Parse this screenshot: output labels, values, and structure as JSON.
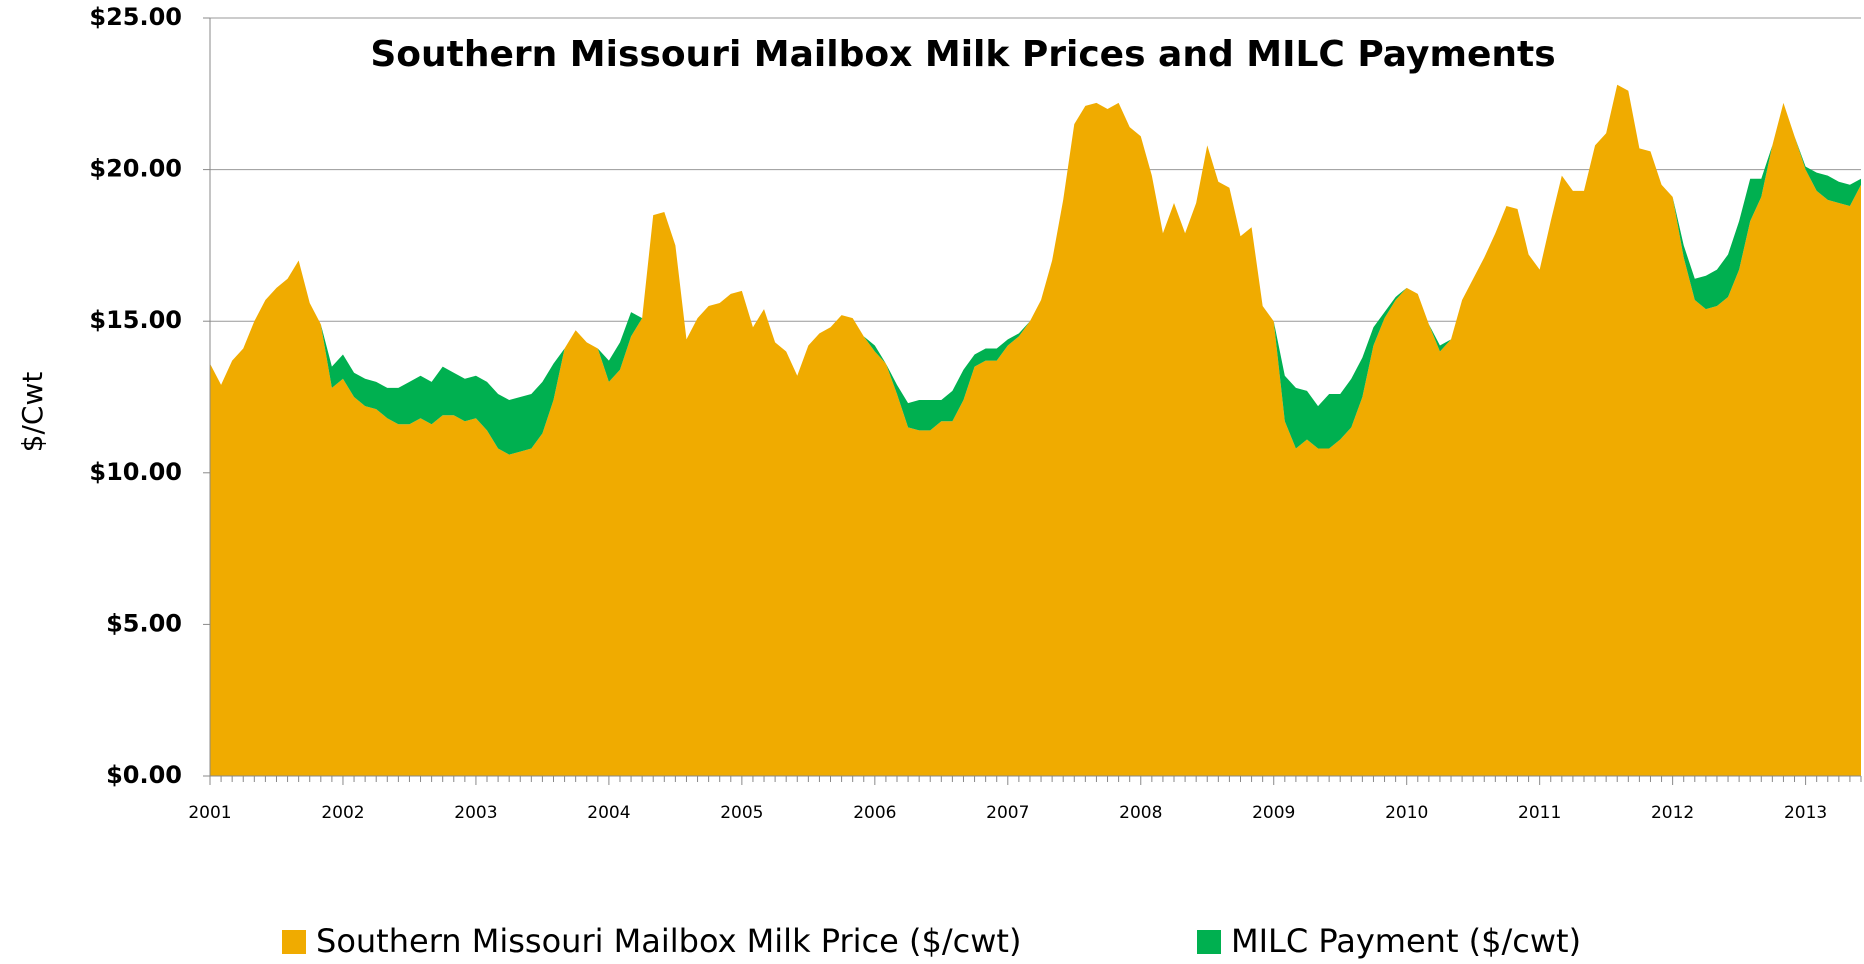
{
  "chart_data": {
    "type": "stacked_area",
    "title": "Southern Missouri Mailbox Milk Prices and MILC Payments",
    "y_label": "$/Cwt",
    "categories": [
      "2001",
      null,
      null,
      null,
      null,
      null,
      null,
      null,
      null,
      null,
      null,
      null,
      "2002",
      null,
      null,
      null,
      null,
      null,
      null,
      null,
      null,
      null,
      null,
      null,
      "2003",
      null,
      null,
      null,
      null,
      null,
      null,
      null,
      null,
      null,
      null,
      null,
      "2004",
      null,
      null,
      null,
      null,
      null,
      null,
      null,
      null,
      null,
      null,
      null,
      "2005",
      null,
      null,
      null,
      null,
      null,
      null,
      null,
      null,
      null,
      null,
      null,
      "2006",
      null,
      null,
      null,
      null,
      null,
      null,
      null,
      null,
      null,
      null,
      null,
      "2007",
      null,
      null,
      null,
      null,
      null,
      null,
      null,
      null,
      null,
      null,
      null,
      "2008",
      null,
      null,
      null,
      null,
      null,
      null,
      null,
      null,
      null,
      null,
      null,
      "2009",
      null,
      null,
      null,
      null,
      null,
      null,
      null,
      null,
      null,
      null,
      null,
      "2010",
      null,
      null,
      null,
      null,
      null,
      null,
      null,
      null,
      null,
      null,
      null,
      "2011",
      null,
      null,
      null,
      null,
      null,
      null,
      null,
      null,
      null,
      null,
      null,
      "2012",
      null,
      null,
      null,
      null,
      null,
      null,
      null,
      null,
      null,
      null,
      null,
      "2013",
      null,
      null,
      null,
      null,
      null
    ],
    "series": [
      {
        "name": "Southern Missouri Mailbox Milk Price ($/cwt)",
        "color": "#f0ab00",
        "values": [
          13.6,
          12.9,
          13.7,
          14.1,
          15.0,
          15.7,
          16.1,
          16.4,
          17.0,
          15.6,
          14.9,
          12.8,
          13.1,
          12.5,
          12.2,
          12.1,
          11.8,
          11.6,
          11.6,
          11.8,
          11.6,
          11.9,
          11.9,
          11.7,
          11.8,
          11.4,
          10.8,
          10.6,
          10.7,
          10.8,
          11.3,
          12.4,
          14.1,
          14.7,
          14.3,
          14.1,
          13.0,
          13.4,
          14.5,
          15.1,
          18.5,
          18.6,
          17.5,
          14.4,
          15.1,
          15.5,
          15.6,
          15.9,
          16.0,
          14.8,
          15.4,
          14.3,
          14.0,
          13.2,
          14.2,
          14.6,
          14.8,
          15.2,
          15.1,
          14.5,
          14.0,
          13.6,
          12.6,
          11.5,
          11.4,
          11.4,
          11.7,
          11.7,
          12.4,
          13.5,
          13.7,
          13.7,
          14.2,
          14.5,
          15.0,
          15.7,
          17.0,
          19.0,
          21.5,
          22.1,
          22.2,
          22.0,
          22.2,
          21.4,
          21.1,
          19.8,
          17.9,
          18.9,
          17.9,
          18.9,
          20.8,
          19.6,
          19.4,
          17.8,
          18.1,
          15.5,
          15.0,
          11.7,
          10.8,
          11.1,
          10.8,
          10.8,
          11.1,
          11.5,
          12.5,
          14.2,
          15.1,
          15.7,
          16.1,
          15.9,
          14.9,
          14.0,
          14.4,
          15.7,
          16.4,
          17.1,
          17.9,
          18.8,
          18.7,
          17.2,
          16.7,
          18.3,
          19.8,
          19.3,
          19.3,
          20.8,
          21.2,
          22.8,
          22.6,
          20.7,
          20.6,
          19.5,
          19.1,
          17.1,
          15.7,
          15.4,
          15.5,
          15.8,
          16.7,
          18.3,
          19.1,
          20.8,
          22.2,
          21.1,
          20.0,
          19.3,
          19.0,
          18.9,
          18.8,
          19.5
        ]
      },
      {
        "name": "MILC Payment ($/cwt)",
        "color": "#00b050",
        "values": [
          0,
          0,
          0,
          0,
          0,
          0,
          0,
          0,
          0,
          0,
          0,
          0.7,
          0.8,
          0.8,
          0.9,
          0.9,
          1.0,
          1.2,
          1.4,
          1.4,
          1.4,
          1.6,
          1.4,
          1.4,
          1.4,
          1.6,
          1.8,
          1.8,
          1.8,
          1.8,
          1.7,
          1.2,
          0,
          0,
          0,
          0,
          0.7,
          0.9,
          0.8,
          0,
          0,
          0,
          0,
          0,
          0,
          0,
          0,
          0,
          0,
          0,
          0,
          0,
          0,
          0,
          0,
          0,
          0,
          0,
          0,
          0,
          0.2,
          0,
          0.3,
          0.8,
          1.0,
          1.0,
          0.7,
          1.0,
          1.0,
          0.4,
          0.4,
          0.4,
          0.2,
          0.1,
          0,
          0,
          0,
          0,
          0,
          0,
          0,
          0,
          0,
          0,
          0,
          0,
          0,
          0,
          0,
          0,
          0,
          0,
          0,
          0,
          0,
          0,
          0,
          1.5,
          2.0,
          1.6,
          1.4,
          1.8,
          1.5,
          1.6,
          1.3,
          0.6,
          0.2,
          0.1,
          0,
          0,
          0,
          0.2,
          0,
          0,
          0,
          0,
          0,
          0,
          0,
          0,
          0,
          0,
          0,
          0,
          0,
          0,
          0,
          0,
          0,
          0,
          0,
          0,
          0,
          0.4,
          0.7,
          1.1,
          1.2,
          1.4,
          1.6,
          1.4,
          0.6,
          0,
          0,
          0,
          0.1,
          0.6,
          0.8,
          0.7,
          0.7,
          0.2
        ]
      }
    ],
    "ylim": [
      0,
      25
    ],
    "yticks": [
      {
        "value": 0,
        "label": "$0.00"
      },
      {
        "value": 5,
        "label": "$5.00"
      },
      {
        "value": 10,
        "label": "$10.00"
      },
      {
        "value": 15,
        "label": "$15.00"
      },
      {
        "value": 20,
        "label": "$20.00"
      },
      {
        "value": 25,
        "label": "$25.00"
      }
    ],
    "grid": true,
    "legend": "bottom"
  }
}
